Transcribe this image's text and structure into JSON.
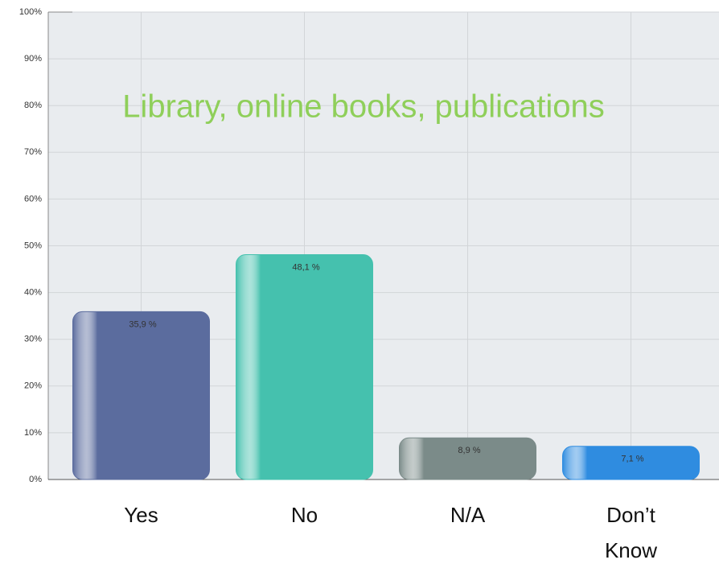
{
  "chart_data": {
    "type": "bar",
    "title": "Library, online books, publications",
    "categories": [
      "Yes",
      "No",
      "N/A",
      "Don’t Know"
    ],
    "values": [
      35.9,
      48.1,
      8.9,
      7.1
    ],
    "value_labels": [
      "35,9 %",
      "48,1 %",
      "8,9 %",
      "7,1 %"
    ],
    "colors": [
      "#5b6c9e",
      "#45c1ae",
      "#7b8b89",
      "#2f8ce0"
    ],
    "ylim": [
      0,
      100
    ],
    "yticks": [
      {
        "value": 0,
        "label": "0%"
      },
      {
        "value": 10,
        "label": "10%"
      },
      {
        "value": 20,
        "label": "20%"
      },
      {
        "value": 30,
        "label": "30%"
      },
      {
        "value": 40,
        "label": "40%"
      },
      {
        "value": 50,
        "label": "50%"
      },
      {
        "value": 60,
        "label": "60%"
      },
      {
        "value": 70,
        "label": "70%"
      },
      {
        "value": 80,
        "label": "80%"
      },
      {
        "value": 90,
        "label": "90%"
      },
      {
        "value": 100,
        "label": "100%"
      }
    ],
    "grid": true
  }
}
